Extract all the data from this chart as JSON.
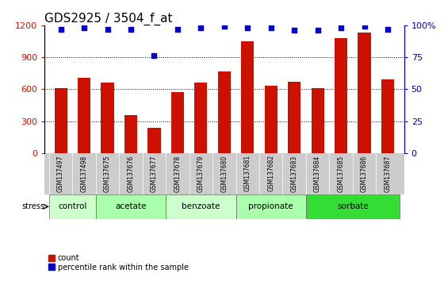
{
  "title": "GDS2925 / 3504_f_at",
  "samples": [
    "GSM137497",
    "GSM137498",
    "GSM137675",
    "GSM137676",
    "GSM137677",
    "GSM137678",
    "GSM137679",
    "GSM137680",
    "GSM137681",
    "GSM137682",
    "GSM137683",
    "GSM137684",
    "GSM137685",
    "GSM137686",
    "GSM137687"
  ],
  "counts": [
    610,
    710,
    660,
    360,
    240,
    570,
    660,
    770,
    1050,
    630,
    670,
    610,
    1080,
    1130,
    690
  ],
  "percentiles": [
    97,
    98,
    97,
    97,
    76,
    97,
    98,
    99,
    98,
    98,
    96,
    96,
    98,
    99,
    97
  ],
  "groups": [
    {
      "label": "control",
      "start": 0,
      "end": 2
    },
    {
      "label": "acetate",
      "start": 2,
      "end": 5
    },
    {
      "label": "benzoate",
      "start": 5,
      "end": 8
    },
    {
      "label": "propionate",
      "start": 8,
      "end": 11
    },
    {
      "label": "sorbate",
      "start": 11,
      "end": 15
    }
  ],
  "group_colors": [
    "#ccffcc",
    "#aaffaa",
    "#ccffcc",
    "#aaffaa",
    "#33dd33"
  ],
  "bar_color": "#cc1100",
  "dot_color": "#0000cc",
  "ylim_left": [
    0,
    1200
  ],
  "ylim_right": [
    0,
    100
  ],
  "yticks_left": [
    0,
    300,
    600,
    900,
    1200
  ],
  "ytick_labels_left": [
    "0",
    "300",
    "600",
    "900",
    "1200"
  ],
  "yticks_right": [
    0,
    25,
    50,
    75,
    100
  ],
  "ytick_labels_right": [
    "0",
    "25",
    "50",
    "75",
    "100%"
  ],
  "grid_values": [
    300,
    600,
    900
  ],
  "stress_label": "stress",
  "legend_count_label": "count",
  "legend_pct_label": "percentile rank within the sample",
  "title_fontsize": 11,
  "axis_color_left": "#cc1100",
  "axis_color_right": "#0000cc",
  "xtick_bg_color": "#cccccc",
  "bar_width": 0.55
}
